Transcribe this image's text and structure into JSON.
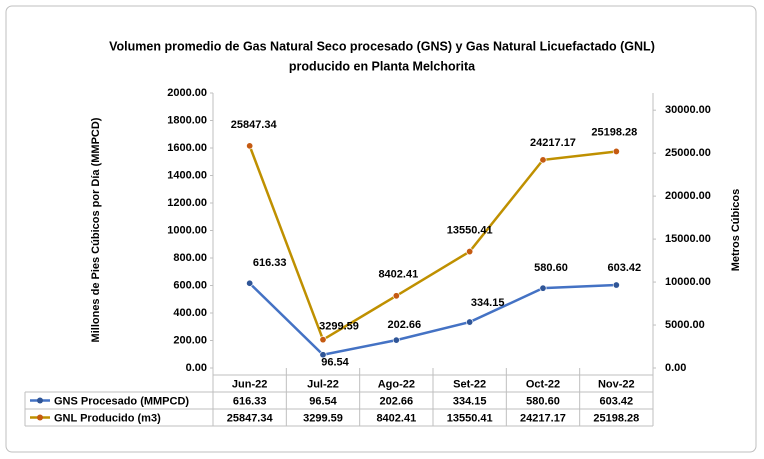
{
  "chart_data": {
    "type": "line",
    "title": "Volumen promedio de Gas Natural Seco procesado (GNS) y Gas Natural Licuefactado (GNL)",
    "subtitle": "producido en Planta Melchorita",
    "y_label": "Millones de Pies Cúbicos por Día (MMPCD)",
    "y2_label": "Metros Cúbicos",
    "categories": [
      "Jun-22",
      "Jul-22",
      "Ago-22",
      "Set-22",
      "Oct-22",
      "Nov-22"
    ],
    "series": [
      {
        "name": "GNS Procesado (MMPCD)",
        "color": "#4472c4",
        "marker_color": "#2f5597",
        "axis": "y",
        "values": [
          616.33,
          96.54,
          202.66,
          334.15,
          580.6,
          603.42
        ],
        "value_labels": [
          "616.33",
          "96.54",
          "202.66",
          "334.15",
          "580.60",
          "603.42"
        ]
      },
      {
        "name": "GNL Producido (m3)",
        "color": "#bf9000",
        "marker_color": "#c55a11",
        "axis": "y2",
        "values": [
          25847.34,
          3299.59,
          8402.41,
          13550.41,
          24217.17,
          25198.28
        ],
        "value_labels": [
          "25847.34",
          "3299.59",
          "8402.41",
          "13550.41",
          "24217.17",
          "25198.28"
        ]
      }
    ],
    "ylim": [
      0,
      2000
    ],
    "yticks": [
      {
        "value": 0,
        "label": "0.00"
      },
      {
        "value": 200,
        "label": "200.00"
      },
      {
        "value": 400,
        "label": "400.00"
      },
      {
        "value": 600,
        "label": "600.00"
      },
      {
        "value": 800,
        "label": "800.00"
      },
      {
        "value": 1000,
        "label": "1000.00"
      },
      {
        "value": 1200,
        "label": "1200.00"
      },
      {
        "value": 1400,
        "label": "1400.00"
      },
      {
        "value": 1600,
        "label": "1600.00"
      },
      {
        "value": 1800,
        "label": "1800.00"
      },
      {
        "value": 2000,
        "label": "2000.00"
      }
    ],
    "y2lim": [
      0,
      32000
    ],
    "y2ticks": [
      {
        "value": 0,
        "label": "0.00"
      },
      {
        "value": 5000,
        "label": "5000.00"
      },
      {
        "value": 10000,
        "label": "10000.00"
      },
      {
        "value": 15000,
        "label": "15000.00"
      },
      {
        "value": 20000,
        "label": "20000.00"
      },
      {
        "value": 25000,
        "label": "25000.00"
      },
      {
        "value": 30000,
        "label": "30000.00"
      }
    ],
    "grid": false
  }
}
